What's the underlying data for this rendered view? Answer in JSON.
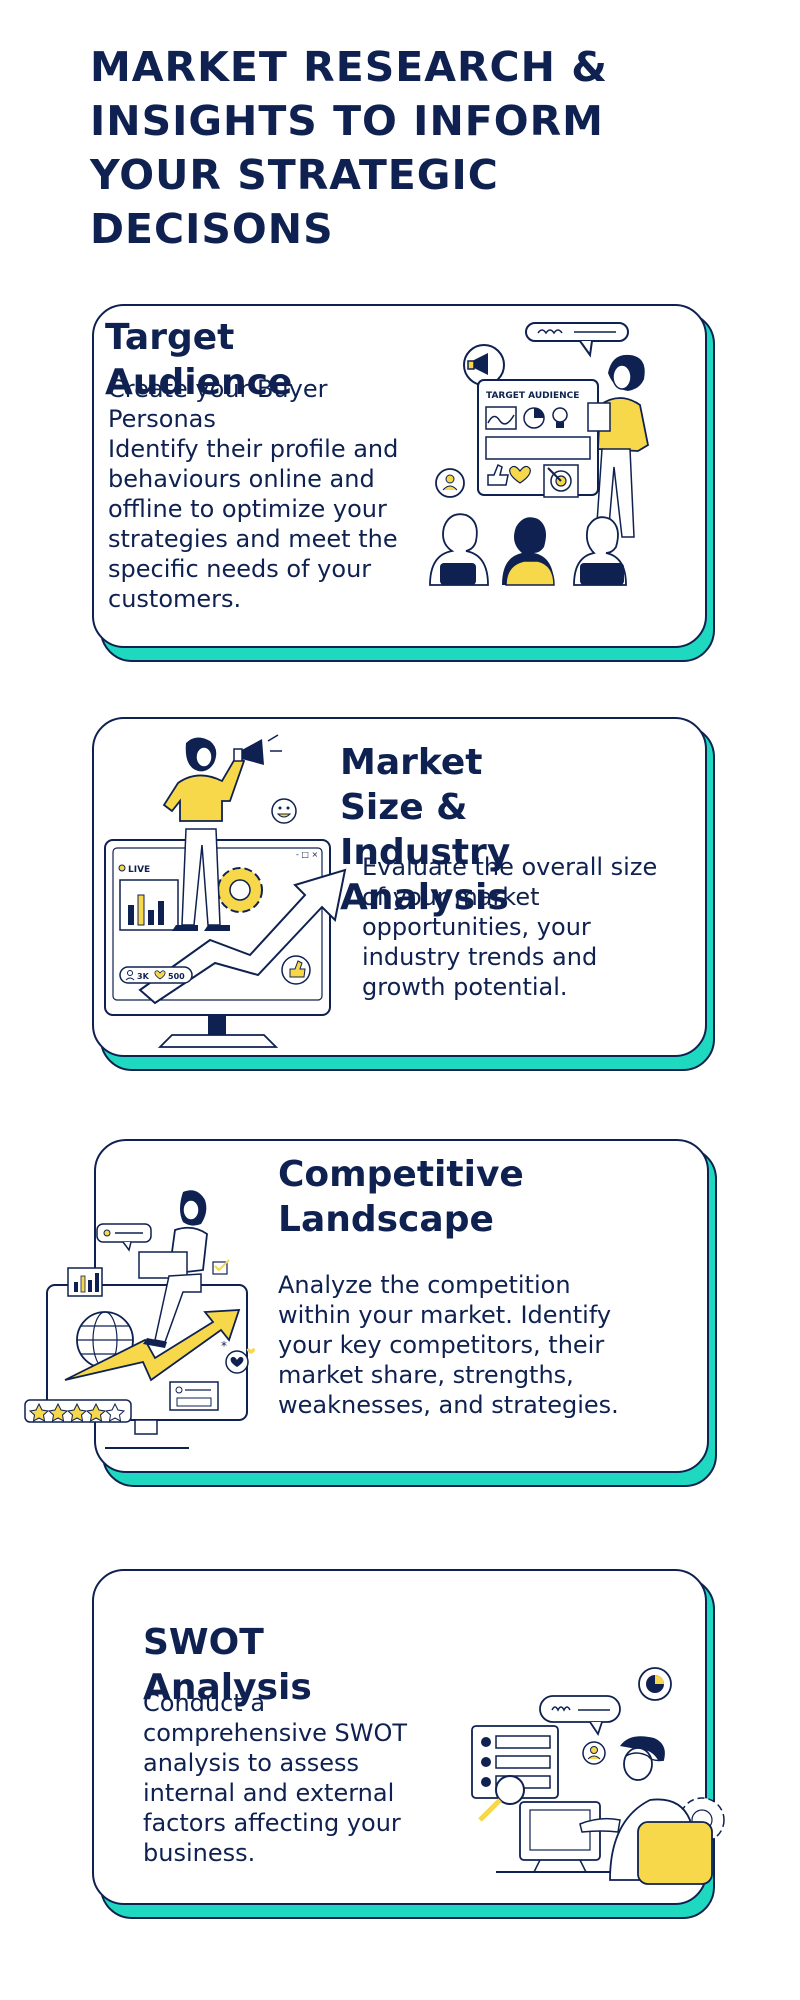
{
  "page": {
    "title": "MARKET RESEARCH & INSIGHTS TO INFORM YOUR STRATEGIC DECISONS"
  },
  "colors": {
    "navy": "#0f2150",
    "teal": "#1ed9c0",
    "yellow": "#f7d84a",
    "white": "#ffffff"
  },
  "sections": [
    {
      "title": "Target Audience",
      "body": "Create your Buyer\nPersonas\nIdentify their profile and\nbehaviours online and\noffline to optimize your\nstrategies and meet the\nspecific needs of your\ncustomers.",
      "illustration": {
        "board_label": "TARGET AUDIENCE",
        "icons": [
          "megaphone-icon",
          "chat-bubble-icon",
          "pie-chart-icon",
          "lightbulb-icon",
          "thumbs-up-icon",
          "heart-icon",
          "target-icon",
          "user-icon"
        ]
      }
    },
    {
      "title": "Market Size &\nIndustry Analysis",
      "body": "Evaluate the overall size\nof your market\nopportunities, your\nindustry trends and\ngrowth potential.",
      "illustration": {
        "live_label": "LIVE",
        "followers": "3K",
        "likes": "500",
        "icons": [
          "megaphone-icon",
          "smiley-icon",
          "gear-icon",
          "bar-chart-icon",
          "thumbs-up-icon",
          "arrow-up-icon"
        ]
      }
    },
    {
      "title": "Competitive\nLandscape",
      "body": "Analyze the competition\nwithin your market. Identify\nyour key competitors, their\nmarket share, strengths,\nweaknesses, and strategies.",
      "illustration": {
        "rating_stars": 4.5,
        "icons": [
          "globe-icon",
          "bar-chart-icon",
          "arrow-up-icon",
          "heart-icon",
          "check-icon",
          "star-icon"
        ]
      }
    },
    {
      "title": "SWOT Analysis",
      "body": "Conduct a\ncomprehensive SWOT\nanalysis to assess\ninternal and external\nfactors affecting your\nbusiness.",
      "illustration": {
        "icons": [
          "pie-chart-icon",
          "chat-bubble-icon",
          "list-icon",
          "magnifier-icon",
          "user-icon",
          "gear-icon"
        ]
      }
    }
  ]
}
